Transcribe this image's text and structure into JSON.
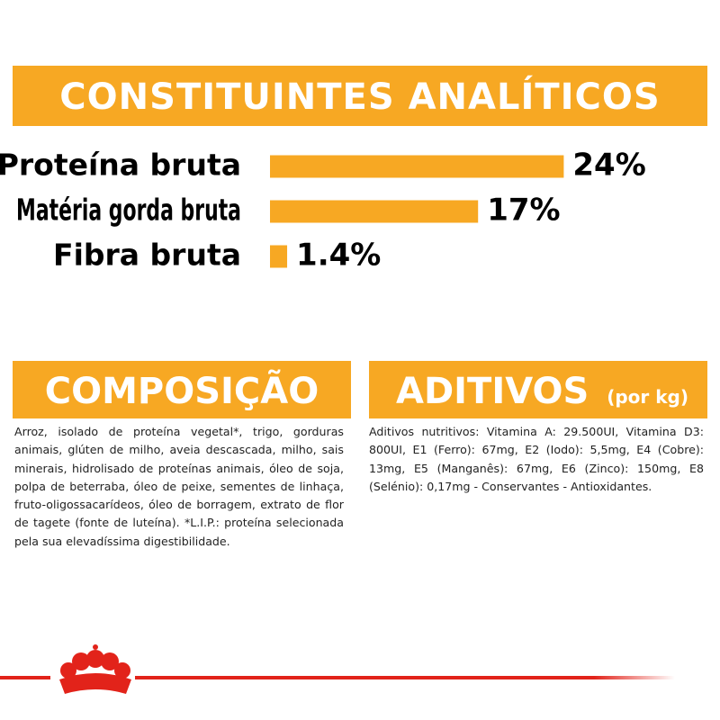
{
  "title": "CONSTITUINTES ANALÍTICOS",
  "chart_data": {
    "type": "bar",
    "orientation": "horizontal",
    "categories": [
      "Proteína bruta",
      "Matéria gorda bruta",
      "Fibra bruta"
    ],
    "values": [
      24,
      17,
      1.4
    ],
    "value_labels": [
      "24%",
      "17%",
      "1.4%"
    ],
    "color": "#f7a823"
  },
  "composition": {
    "title": "COMPOSIÇÃO",
    "text": "Arroz, isolado de proteína vegetal*, trigo, gorduras animais, glúten de milho, aveia descascada, milho, sais minerais, hidrolisado de proteínas animais, óleo de soja, polpa de beterraba, óleo de peixe, sementes de linhaça, fruto-oligossacarídeos, óleo de borragem, extrato de flor de tagete (fonte de luteína). *L.I.P.: proteína selecionada pela sua elevadíssima digestibilidade."
  },
  "additives": {
    "title": "ADITIVOS",
    "unit": "(por kg)",
    "text": "Aditivos nutritivos: Vitamina A: 29.500UI, Vitamina D3: 800UI, E1 (Ferro): 67mg, E2 (Iodo): 5,5mg, E4 (Cobre): 13mg, E5 (Manganês): 67mg, E6 (Zinco): 150mg, E8 (Selénio): 0,17mg - Conservantes - Antioxidantes."
  }
}
